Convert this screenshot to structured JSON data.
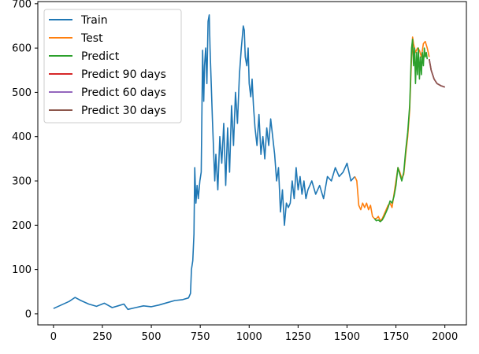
{
  "chart_data": {
    "type": "line",
    "title": "",
    "xlabel": "",
    "ylabel": "",
    "xlim": [
      -80,
      2110
    ],
    "ylim": [
      -25,
      705
    ],
    "xticks": [
      0,
      250,
      500,
      750,
      1000,
      1250,
      1500,
      1750,
      2000
    ],
    "yticks": [
      0,
      100,
      200,
      300,
      400,
      500,
      600,
      700
    ],
    "grid": false,
    "legend_position": "top-left",
    "series": [
      {
        "name": "Train",
        "color": "#1f77b4",
        "x": [
          0,
          40,
          80,
          110,
          140,
          180,
          220,
          260,
          300,
          330,
          360,
          380,
          420,
          460,
          500,
          540,
          580,
          620,
          660,
          690,
          700,
          705,
          712,
          718,
          722,
          728,
          734,
          740,
          748,
          755,
          762,
          768,
          772,
          778,
          784,
          790,
          796,
          800,
          806,
          812,
          818,
          824,
          830,
          840,
          850,
          860,
          870,
          880,
          890,
          900,
          910,
          920,
          930,
          940,
          950,
          960,
          970,
          975,
          980,
          988,
          995,
          1000,
          1008,
          1015,
          1022,
          1030,
          1040,
          1050,
          1060,
          1070,
          1080,
          1090,
          1100,
          1110,
          1120,
          1130,
          1140,
          1150,
          1160,
          1170,
          1180,
          1190,
          1200,
          1210,
          1220,
          1230,
          1240,
          1250,
          1260,
          1270,
          1280,
          1290,
          1300,
          1320,
          1340,
          1360,
          1380,
          1400,
          1420,
          1440,
          1460,
          1480,
          1500,
          1520,
          1540
        ],
        "y": [
          12,
          20,
          28,
          37,
          30,
          22,
          17,
          24,
          14,
          18,
          22,
          10,
          14,
          18,
          16,
          20,
          25,
          30,
          32,
          36,
          46,
          100,
          120,
          180,
          330,
          250,
          290,
          260,
          300,
          320,
          595,
          480,
          560,
          600,
          520,
          660,
          675,
          600,
          520,
          440,
          370,
          300,
          360,
          280,
          400,
          340,
          430,
          290,
          420,
          320,
          470,
          380,
          500,
          430,
          540,
          600,
          650,
          640,
          580,
          560,
          600,
          520,
          490,
          530,
          470,
          420,
          380,
          450,
          360,
          400,
          350,
          420,
          380,
          440,
          400,
          360,
          300,
          330,
          230,
          280,
          200,
          250,
          240,
          250,
          300,
          260,
          330,
          280,
          310,
          270,
          300,
          260,
          280,
          300,
          270,
          290,
          260,
          310,
          300,
          330,
          310,
          320,
          340,
          300,
          310
        ]
      },
      {
        "name": "Test",
        "color": "#ff7f0e",
        "x": [
          1540,
          1550,
          1560,
          1570,
          1580,
          1590,
          1600,
          1610,
          1620,
          1630,
          1640,
          1650,
          1660,
          1670,
          1680,
          1690,
          1700,
          1710,
          1720,
          1730,
          1740,
          1750,
          1760,
          1770,
          1780,
          1790,
          1800,
          1810,
          1820,
          1830,
          1835,
          1840,
          1850,
          1860,
          1870,
          1880,
          1890,
          1900,
          1910,
          1920
        ],
        "y": [
          310,
          300,
          245,
          235,
          250,
          240,
          250,
          235,
          245,
          220,
          215,
          215,
          220,
          210,
          215,
          225,
          235,
          245,
          250,
          240,
          270,
          300,
          330,
          320,
          305,
          315,
          360,
          400,
          460,
          580,
          625,
          610,
          590,
          600,
          595,
          580,
          610,
          615,
          600,
          580
        ]
      },
      {
        "name": "Predict",
        "color": "#2ca02c",
        "x": [
          1640,
          1650,
          1660,
          1670,
          1680,
          1690,
          1700,
          1710,
          1720,
          1730,
          1740,
          1750,
          1760,
          1770,
          1780,
          1790,
          1800,
          1810,
          1820,
          1830,
          1835,
          1840,
          1845,
          1850,
          1855,
          1860,
          1865,
          1870,
          1875,
          1880,
          1885,
          1890,
          1895,
          1900,
          1905,
          1910
        ],
        "y": [
          215,
          210,
          212,
          208,
          212,
          220,
          230,
          240,
          255,
          250,
          265,
          290,
          330,
          315,
          300,
          320,
          370,
          410,
          470,
          600,
          620,
          560,
          600,
          520,
          590,
          540,
          600,
          530,
          580,
          540,
          590,
          560,
          600,
          580,
          590,
          575
        ]
      },
      {
        "name": "Predict 90 days",
        "color": "#d62728",
        "x": [
          1920,
          1930,
          1945,
          1960,
          1980,
          2000
        ],
        "y": [
          575,
          550,
          530,
          520,
          515,
          512
        ]
      },
      {
        "name": "Predict 60 days",
        "color": "#9467bd",
        "x": [
          1920,
          1930,
          1945,
          1960,
          1980,
          2000
        ],
        "y": [
          575,
          550,
          530,
          520,
          515,
          512
        ]
      },
      {
        "name": "Predict 30 days",
        "color": "#8c564b",
        "x": [
          1920,
          1930,
          1945,
          1960,
          1980,
          2000
        ],
        "y": [
          575,
          550,
          530,
          520,
          515,
          512
        ]
      }
    ]
  }
}
